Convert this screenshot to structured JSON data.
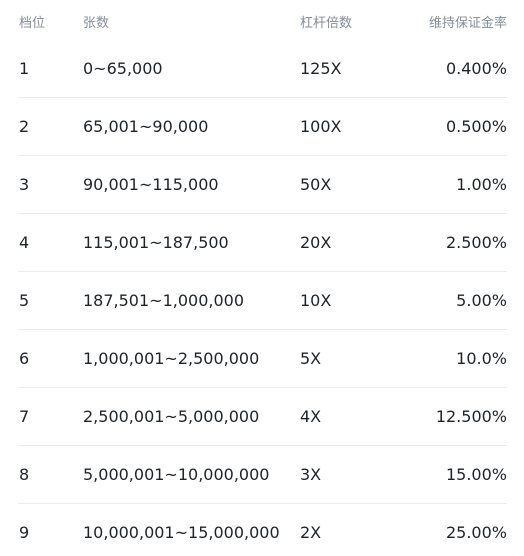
{
  "table": {
    "headers": {
      "tier": "档位",
      "quantity": "张数",
      "leverage": "杠杆倍数",
      "maintenance_margin_rate": "维持保证金率"
    },
    "rows": [
      {
        "tier": "1",
        "quantity": "0~65,000",
        "leverage": "125X",
        "mmr": "0.400%"
      },
      {
        "tier": "2",
        "quantity": "65,001~90,000",
        "leverage": "100X",
        "mmr": "0.500%"
      },
      {
        "tier": "3",
        "quantity": "90,001~115,000",
        "leverage": "50X",
        "mmr": "1.00%"
      },
      {
        "tier": "4",
        "quantity": "115,001~187,500",
        "leverage": "20X",
        "mmr": "2.500%"
      },
      {
        "tier": "5",
        "quantity": "187,501~1,000,000",
        "leverage": "10X",
        "mmr": "5.00%"
      },
      {
        "tier": "6",
        "quantity": "1,000,001~2,500,000",
        "leverage": "5X",
        "mmr": "10.0%"
      },
      {
        "tier": "7",
        "quantity": "2,500,001~5,000,000",
        "leverage": "4X",
        "mmr": "12.500%"
      },
      {
        "tier": "8",
        "quantity": "5,000,001~10,000,000",
        "leverage": "3X",
        "mmr": "15.00%"
      },
      {
        "tier": "9",
        "quantity": "10,000,001~15,000,000",
        "leverage": "2X",
        "mmr": "25.00%"
      }
    ]
  }
}
